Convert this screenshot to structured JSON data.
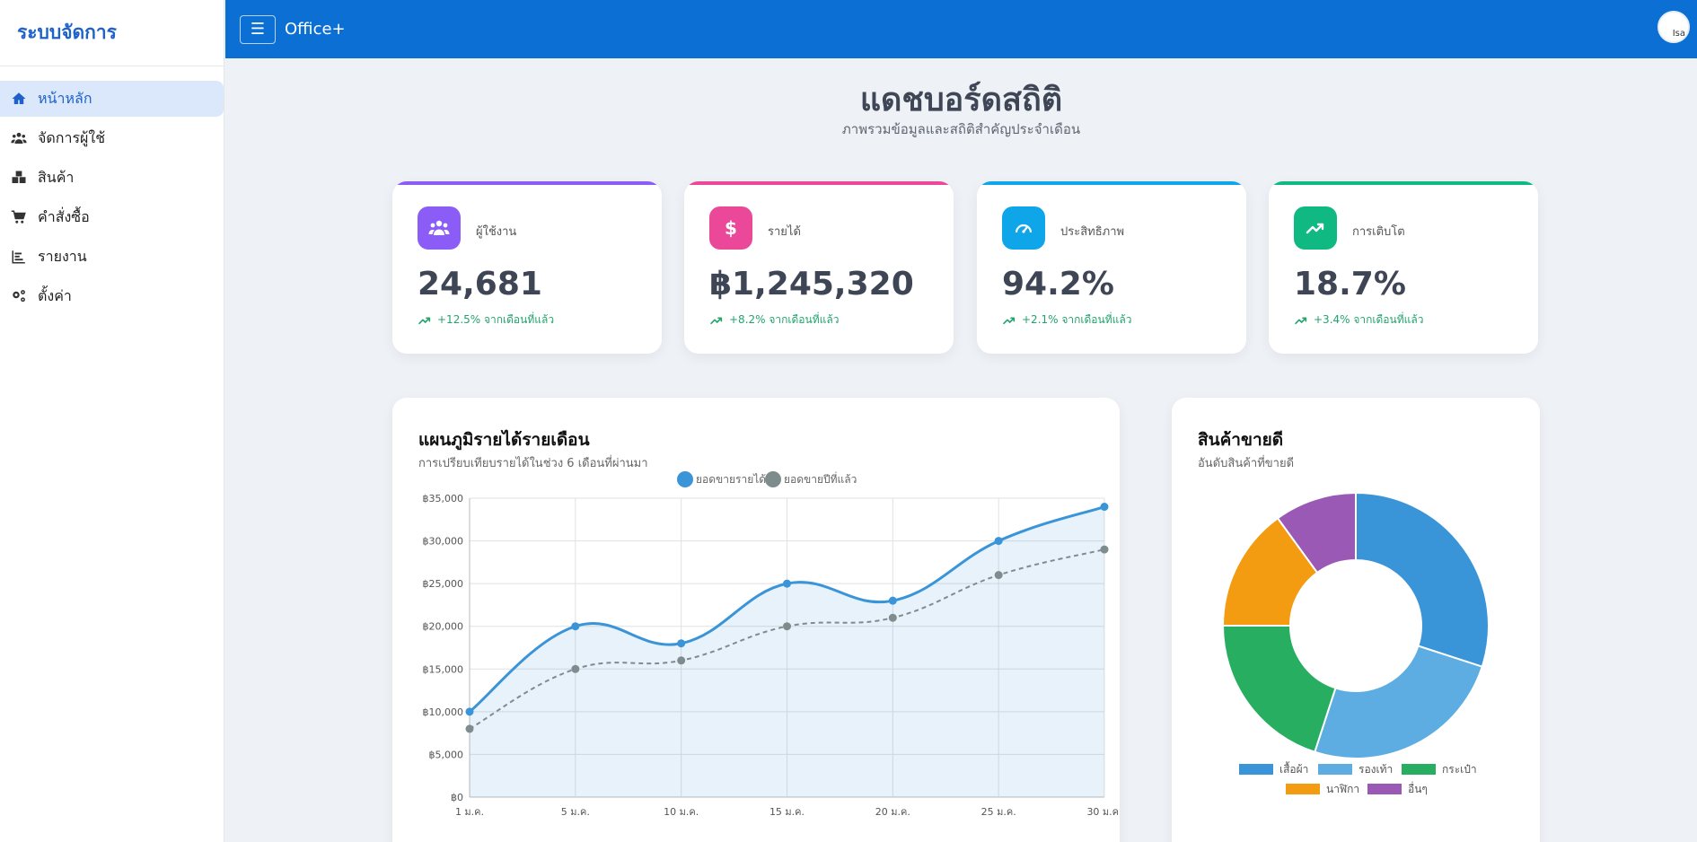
{
  "sidebar": {
    "brand": "ระบบจัดการ",
    "items": [
      {
        "label": "หน้าหลัก",
        "icon": "home-icon",
        "active": true
      },
      {
        "label": "จัดการผู้ใช้",
        "icon": "users-icon",
        "active": false
      },
      {
        "label": "สินค้า",
        "icon": "boxes-icon",
        "active": false
      },
      {
        "label": "คำสั่งซื้อ",
        "icon": "cart-icon",
        "active": false
      },
      {
        "label": "รายงาน",
        "icon": "chart-bar-icon",
        "active": false
      },
      {
        "label": "ตั้งค่า",
        "icon": "gears-icon",
        "active": false
      }
    ]
  },
  "topbar": {
    "menu_icon": "☰",
    "app_name": "Office+",
    "avatar_alt": "Isa"
  },
  "header": {
    "title": "แดชบอร์ดสถิติ",
    "subtitle": "ภาพรวมข้อมูลและสถิติสำคัญประจำเดือน"
  },
  "stats": [
    {
      "label": "ผู้ใช้งาน",
      "value": "24,681",
      "delta": "+12.5% จากเดือนที่แล้ว",
      "color": "#8b5cf6",
      "icon": "users-icon"
    },
    {
      "label": "รายได้",
      "value": "฿1,245,320",
      "delta": "+8.2% จากเดือนที่แล้ว",
      "color": "#ec4899",
      "icon": "dollar-icon"
    },
    {
      "label": "ประสิทธิภาพ",
      "value": "94.2%",
      "delta": "+2.1% จากเดือนที่แล้ว",
      "color": "#0ea5e9",
      "icon": "gauge-icon"
    },
    {
      "label": "การเติบโต",
      "value": "18.7%",
      "delta": "+3.4% จากเดือนที่แล้ว",
      "color": "#10b981",
      "icon": "trend-up-icon"
    }
  ],
  "revenue_panel": {
    "title": "แผนภูมิรายได้รายเดือน",
    "subtitle": "การเปรียบเทียบรายได้ในช่วง 6 เดือนที่ผ่านมา"
  },
  "products_panel": {
    "title": "สินค้าขายดี",
    "subtitle": "อันดับสินค้าที่ขายดี"
  },
  "chart_data": [
    {
      "type": "line",
      "title": "",
      "x": [
        "1 ม.ค.",
        "5 ม.ค.",
        "10 ม.ค.",
        "15 ม.ค.",
        "20 ม.ค.",
        "25 ม.ค.",
        "30 ม.ค."
      ],
      "series": [
        {
          "name": "ยอดขายรายได้",
          "values": [
            10000,
            20000,
            18000,
            25000,
            23000,
            30000,
            34000
          ],
          "color": "#3a94d8",
          "style": "solid",
          "fill": true
        },
        {
          "name": "ยอดขายปีที่แล้ว",
          "values": [
            8000,
            15000,
            16000,
            20000,
            21000,
            26000,
            29000
          ],
          "color": "#7f8c8d",
          "style": "dashed",
          "fill": false
        }
      ],
      "yticks": [
        "฿0",
        "฿5,000",
        "฿10,000",
        "฿15,000",
        "฿20,000",
        "฿25,000",
        "฿30,000",
        "฿35,000"
      ],
      "ylim": [
        0,
        35000
      ],
      "grid": true,
      "legend": "top-center"
    },
    {
      "type": "pie",
      "donut": true,
      "labels": [
        "เสื้อผ้า",
        "รองเท้า",
        "กระเป๋า",
        "นาฬิกา",
        "อื่นๆ"
      ],
      "values": [
        30,
        25,
        20,
        15,
        10
      ],
      "colors": [
        "#3a94d8",
        "#5dade2",
        "#27ae60",
        "#f39c12",
        "#9b59b6"
      ],
      "legend": "bottom"
    }
  ]
}
